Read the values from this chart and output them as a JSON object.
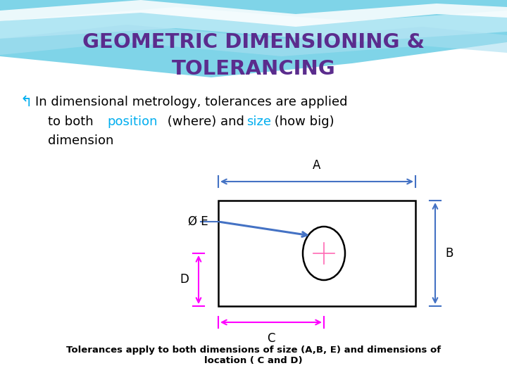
{
  "title_line1": "GEOMETRIC DIMENSIONING &",
  "title_line2": "TOLERANCING",
  "title_color": "#5B2C8D",
  "keyword_color": "#00AEEF",
  "body_color": "#000000",
  "bullet_color": "#00AEEF",
  "footer_text": "Tolerances apply to both dimensions of size (A,B, E) and dimensions of\nlocation ( C and D)",
  "dim_A_color": "#4472C4",
  "dim_B_color": "#4472C4",
  "dim_C_color": "#FF00FF",
  "dim_D_color": "#FF00FF",
  "leader_color": "#4472C4",
  "label_color": "#000000",
  "bg_white": "#FFFFFF",
  "bg_light": "#F5FBFF"
}
